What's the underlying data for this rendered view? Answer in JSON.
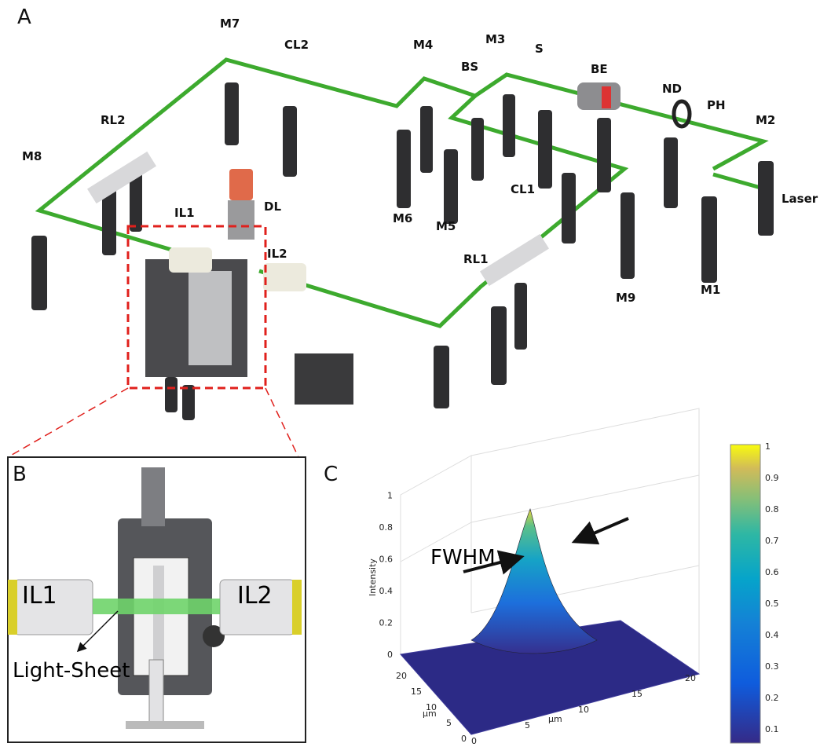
{
  "panel_a": {
    "letter": "A",
    "labels": [
      "M7",
      "CL2",
      "M4",
      "M3",
      "S",
      "BS",
      "BE",
      "ND",
      "PH",
      "M2",
      "RL2",
      "M8",
      "IL1",
      "DL",
      "IL2",
      "M6",
      "M5",
      "CL1",
      "RL1",
      "M9",
      "M1",
      "Laser"
    ]
  },
  "panel_b": {
    "letter": "B",
    "labels": [
      "IL1",
      "IL2",
      "Light-Sheet"
    ]
  },
  "panel_c": {
    "letter": "C",
    "annotation": "FWHM",
    "z_label": "Intensity",
    "z_ticks": [
      "0",
      "0.2",
      "0.4",
      "0.6",
      "0.8",
      "1"
    ],
    "y_ticks": [
      "0",
      "5",
      "10",
      "15",
      "20"
    ],
    "y_unit": "μm",
    "x_ticks": [
      "0",
      "5",
      "10",
      "15",
      "20"
    ],
    "x_unit": "μm",
    "colorbar_ticks": [
      "1",
      "0.9",
      "0.8",
      "0.7",
      "0.6",
      "0.5",
      "0.4",
      "0.3",
      "0.2",
      "0.1"
    ]
  }
}
